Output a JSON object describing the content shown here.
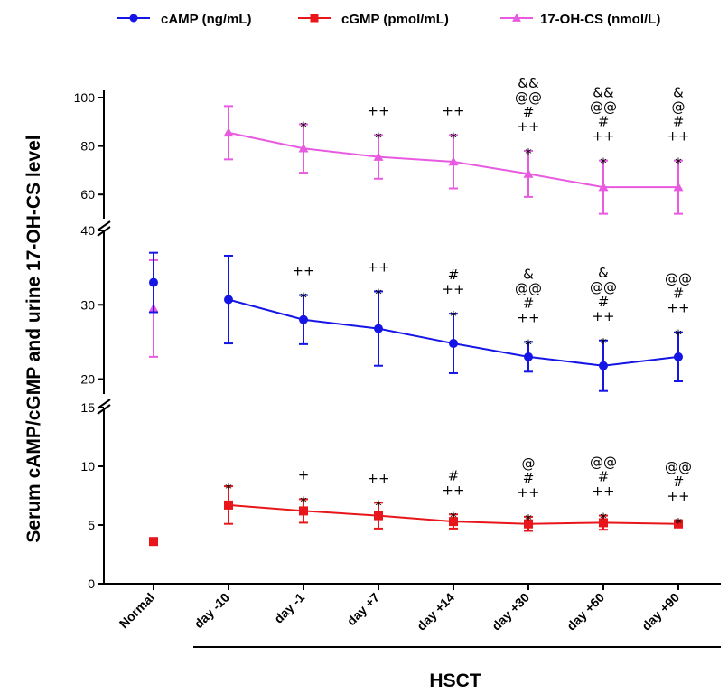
{
  "chart_data": {
    "type": "line",
    "title": "",
    "ylabel": "Serum cAMP/cGMP and urine 17-OH-CS level",
    "xlabel": "",
    "group_label": "HSCT",
    "categories": [
      "Normal",
      "day -10",
      "day -1",
      "day +7",
      "day +14",
      "day +30",
      "day +60",
      "day +90"
    ],
    "legend_position": "top",
    "grid": false,
    "y_axis": {
      "broken": true,
      "segments": [
        {
          "range": [
            0,
            15
          ],
          "ticks": [
            0,
            5,
            10,
            15
          ]
        },
        {
          "range": [
            18,
            40
          ],
          "ticks": [
            20,
            30,
            40
          ]
        },
        {
          "range": [
            50,
            100
          ],
          "ticks": [
            60,
            80,
            100
          ]
        }
      ]
    },
    "series": [
      {
        "name": "cAMP (ng/mL)",
        "color": "#1515e6",
        "marker": "circle",
        "values": [
          33.0,
          30.7,
          28.0,
          26.8,
          24.8,
          23.0,
          21.8,
          23.0
        ],
        "errors": [
          4.0,
          5.9,
          3.3,
          5.0,
          4.0,
          2.0,
          3.4,
          3.3
        ],
        "annotations": [
          "",
          "",
          "*|++",
          "*|++",
          "*|++|#",
          "*|++|#|@@|&",
          "*|++|#|@@|&",
          "*|++|#|@@"
        ]
      },
      {
        "name": "cGMP (pmol/mL)",
        "color": "#e8161a",
        "marker": "square",
        "values": [
          3.6,
          6.7,
          6.2,
          5.8,
          5.3,
          5.1,
          5.2,
          5.1
        ],
        "errors": [
          0.0,
          1.6,
          1.0,
          1.1,
          0.6,
          0.6,
          0.6,
          0.3
        ],
        "annotations": [
          "",
          "*",
          "*|+",
          "*|++",
          "*|++|#",
          "*|++|#|@",
          "*|++|#|@@",
          "*|++|#|@@"
        ]
      },
      {
        "name": "17-OH-CS (nmol/L)",
        "color": "#e85be0",
        "marker": "triangle",
        "values": [
          29.5,
          85.5,
          79.0,
          75.5,
          73.5,
          68.5,
          63.0,
          63.0
        ],
        "errors": [
          6.5,
          11.0,
          10.0,
          9.0,
          11.0,
          9.5,
          11.0,
          11.0
        ],
        "annotations": [
          "",
          "",
          "*",
          "*|++",
          "*|++",
          "*|++|#|@@|&&",
          "*|++|#|@@|&&",
          "*|++|#|@|&"
        ]
      }
    ]
  }
}
